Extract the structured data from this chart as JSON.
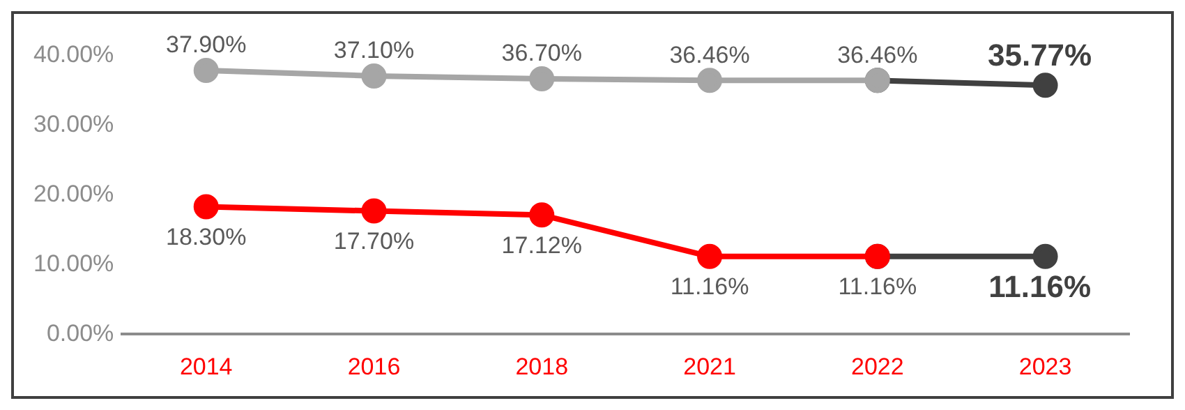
{
  "chart_data": {
    "type": "line",
    "categories": [
      "2014",
      "2016",
      "2018",
      "2021",
      "2022",
      "2023"
    ],
    "series": [
      {
        "color": "#404040",
        "values": [
          null,
          null,
          null,
          null,
          36.46,
          35.77
        ],
        "value_labels": [
          null,
          null,
          null,
          null,
          null,
          "35.77%"
        ]
      },
      {
        "color": "#404040",
        "values": [
          null,
          null,
          null,
          null,
          11.16,
          11.16
        ],
        "value_labels": [
          null,
          null,
          null,
          null,
          null,
          "11.16%"
        ]
      },
      {
        "color": "#a6a6a6",
        "values": [
          37.9,
          37.1,
          36.7,
          36.46,
          36.46,
          null
        ],
        "value_labels": [
          "37.90%",
          "37.10%",
          "36.70%",
          "36.46%",
          "36.46%",
          null
        ]
      },
      {
        "color": "#ff0000",
        "values": [
          18.3,
          17.7,
          17.12,
          11.16,
          11.16,
          null
        ],
        "value_labels": [
          "18.30%",
          "17.70%",
          "17.12%",
          "11.16%",
          "11.16%",
          null
        ]
      }
    ],
    "ylim": [
      0,
      40
    ],
    "yticks": [
      {
        "value": 0,
        "label": "0.00%"
      },
      {
        "value": 10,
        "label": "10.00%"
      },
      {
        "value": 20,
        "label": "20.00%"
      },
      {
        "value": 30,
        "label": "30.00%"
      },
      {
        "value": 40,
        "label": "40.00%"
      }
    ],
    "grid": false,
    "legend": false,
    "marker": "circle",
    "line_style": "solid"
  }
}
